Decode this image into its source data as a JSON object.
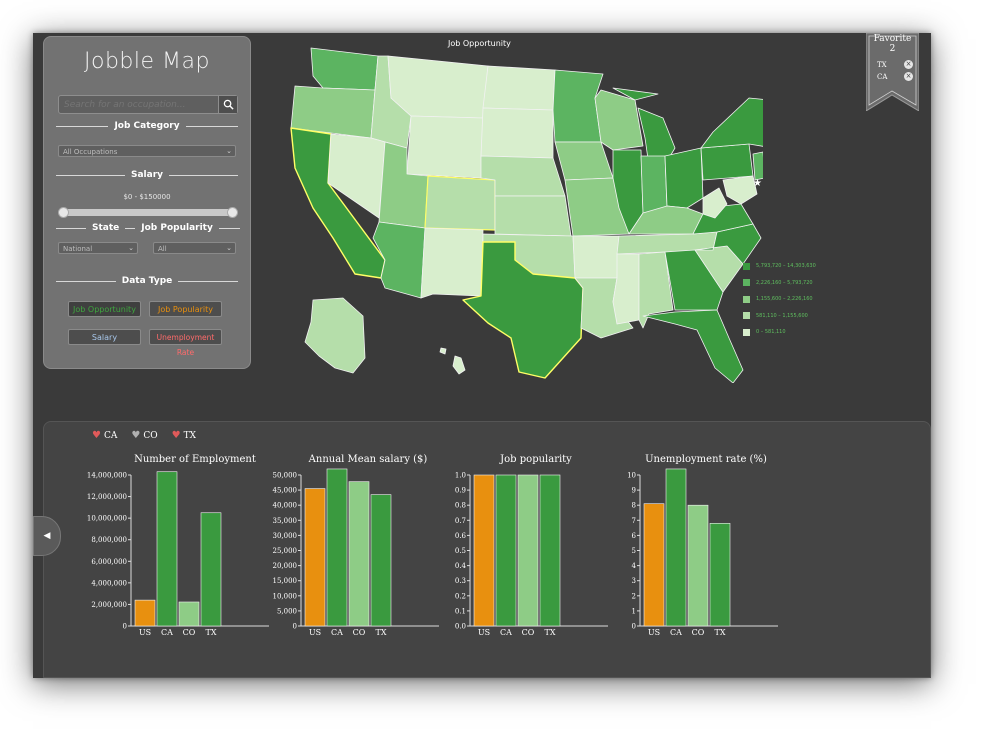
{
  "app": {
    "title": "Jobble Map"
  },
  "search": {
    "placeholder": "Search for an occupation..."
  },
  "sidebar": {
    "job_category_label": "Job Category",
    "job_category_value": "All Occupations",
    "salary_label": "Salary",
    "salary_range": "$0 - $150000",
    "state_label": "State",
    "job_popularity_label": "Job Popularity",
    "state_value": "National",
    "popularity_value": "All",
    "data_type_label": "Data Type",
    "buttons": {
      "job_opportunity": "Job Opportunity",
      "job_popularity": "Job Popularity",
      "salary": "Salary",
      "unemployment": "Unemployment Rate"
    }
  },
  "map": {
    "title": "Job Opportunity",
    "legend": [
      {
        "label": "5,793,720 – 14,303,630",
        "color": "#3a9a3f"
      },
      {
        "label": "2,226,160 – 5,793,720",
        "color": "#5cb461"
      },
      {
        "label": "1,155,600 – 2,226,160",
        "color": "#8ecc86"
      },
      {
        "label": "581,110 – 1,155,600",
        "color": "#b5deaa"
      },
      {
        "label": "0 – 581,110",
        "color": "#d8eecd"
      }
    ]
  },
  "favorite": {
    "title": "Favorite",
    "count": "2",
    "items": [
      "TX",
      "CA"
    ],
    "remove_symbol": "×"
  },
  "compare_legend": [
    {
      "label": "CA",
      "color": "#e05a5a"
    },
    {
      "label": "CO",
      "color": "#b0b0b0"
    },
    {
      "label": "TX",
      "color": "#e05a5a"
    }
  ],
  "colors": {
    "us": "#e8900f",
    "ca": "#3a9a3f",
    "co": "#8ecc86",
    "tx": "#3a9a3f"
  },
  "chart_data": [
    {
      "type": "bar",
      "title": "Number of Employment",
      "categories": [
        "US",
        "CA",
        "CO",
        "TX"
      ],
      "values": [
        2400000,
        14303630,
        2226160,
        10500000
      ],
      "ylim": [
        0,
        14000000
      ],
      "yticks": [
        "0",
        "2,000,000",
        "4,000,000",
        "6,000,000",
        "8,000,000",
        "10,000,000",
        "12,000,000",
        "14,000,000"
      ]
    },
    {
      "type": "bar",
      "title": "Annual Mean salary ($)",
      "categories": [
        "US",
        "CA",
        "CO",
        "TX"
      ],
      "values": [
        45500,
        52500,
        47800,
        43500
      ],
      "ylim": [
        0,
        50000
      ],
      "yticks": [
        "0",
        "5,000",
        "10,000",
        "15,000",
        "20,000",
        "25,000",
        "30,000",
        "35,000",
        "40,000",
        "45,000",
        "50,000"
      ]
    },
    {
      "type": "bar",
      "title": "Job popularity",
      "categories": [
        "US",
        "CA",
        "CO",
        "TX"
      ],
      "values": [
        1.0,
        1.0,
        1.0,
        1.0
      ],
      "ylim": [
        0,
        1.0
      ],
      "yticks": [
        "0.0",
        "0.1",
        "0.2",
        "0.3",
        "0.4",
        "0.5",
        "0.6",
        "0.7",
        "0.8",
        "0.9",
        "1.0"
      ]
    },
    {
      "type": "bar",
      "title": "Unemployment rate (%)",
      "categories": [
        "US",
        "CA",
        "CO",
        "TX"
      ],
      "values": [
        8.1,
        10.4,
        8.0,
        6.8
      ],
      "ylim": [
        0,
        10
      ],
      "yticks": [
        "0",
        "1",
        "2",
        "3",
        "4",
        "5",
        "6",
        "7",
        "8",
        "9",
        "10"
      ]
    }
  ]
}
